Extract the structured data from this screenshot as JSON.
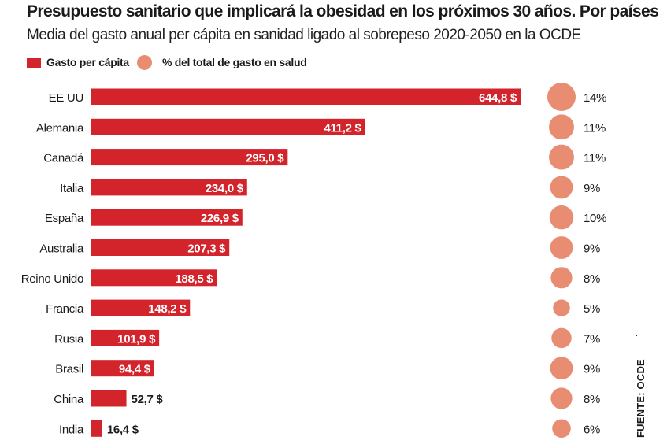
{
  "title": "Presupuesto sanitario que implicará la obesidad en los próximos 30 años. Por países",
  "subtitle": "Media del gasto anual per cápita en sanidad ligado al sobrepeso 2020-2050 en la OCDE",
  "legend": {
    "bar_label": "Gasto per cápita",
    "dot_label": "% del total de gasto en salud"
  },
  "source": "FUENTE: OCDE",
  "colors": {
    "bar": "#d3232b",
    "dot": "#e88d72",
    "text": "#1a1a1a"
  },
  "chart_data": {
    "type": "bar",
    "orientation": "horizontal",
    "categories": [
      "EE UU",
      "Alemania",
      "Canadá",
      "Italia",
      "España",
      "Australia",
      "Reino Unido",
      "Francia",
      "Rusia",
      "Brasil",
      "China",
      "India"
    ],
    "series": [
      {
        "name": "Gasto per cápita",
        "values": [
          644.8,
          411.2,
          295.0,
          234.0,
          226.9,
          207.3,
          188.5,
          148.2,
          101.9,
          94.4,
          52.7,
          16.4
        ],
        "labels": [
          "644,8 $",
          "411,2 $",
          "295,0 $",
          "234,0 $",
          "226,9 $",
          "207,3 $",
          "188,5 $",
          "148,2 $",
          "101,9 $",
          "94,4 $",
          "52,7 $",
          "16,4 $"
        ]
      },
      {
        "name": "% del total de gasto en salud",
        "values": [
          14,
          11,
          11,
          9,
          10,
          9,
          8,
          5,
          7,
          9,
          8,
          6
        ],
        "labels": [
          "14%",
          "11%",
          "11%",
          "9%",
          "10%",
          "9%",
          "8%",
          "5%",
          "7%",
          "9%",
          "8%",
          "6%"
        ]
      }
    ],
    "xlim": [
      0,
      644.8
    ]
  }
}
